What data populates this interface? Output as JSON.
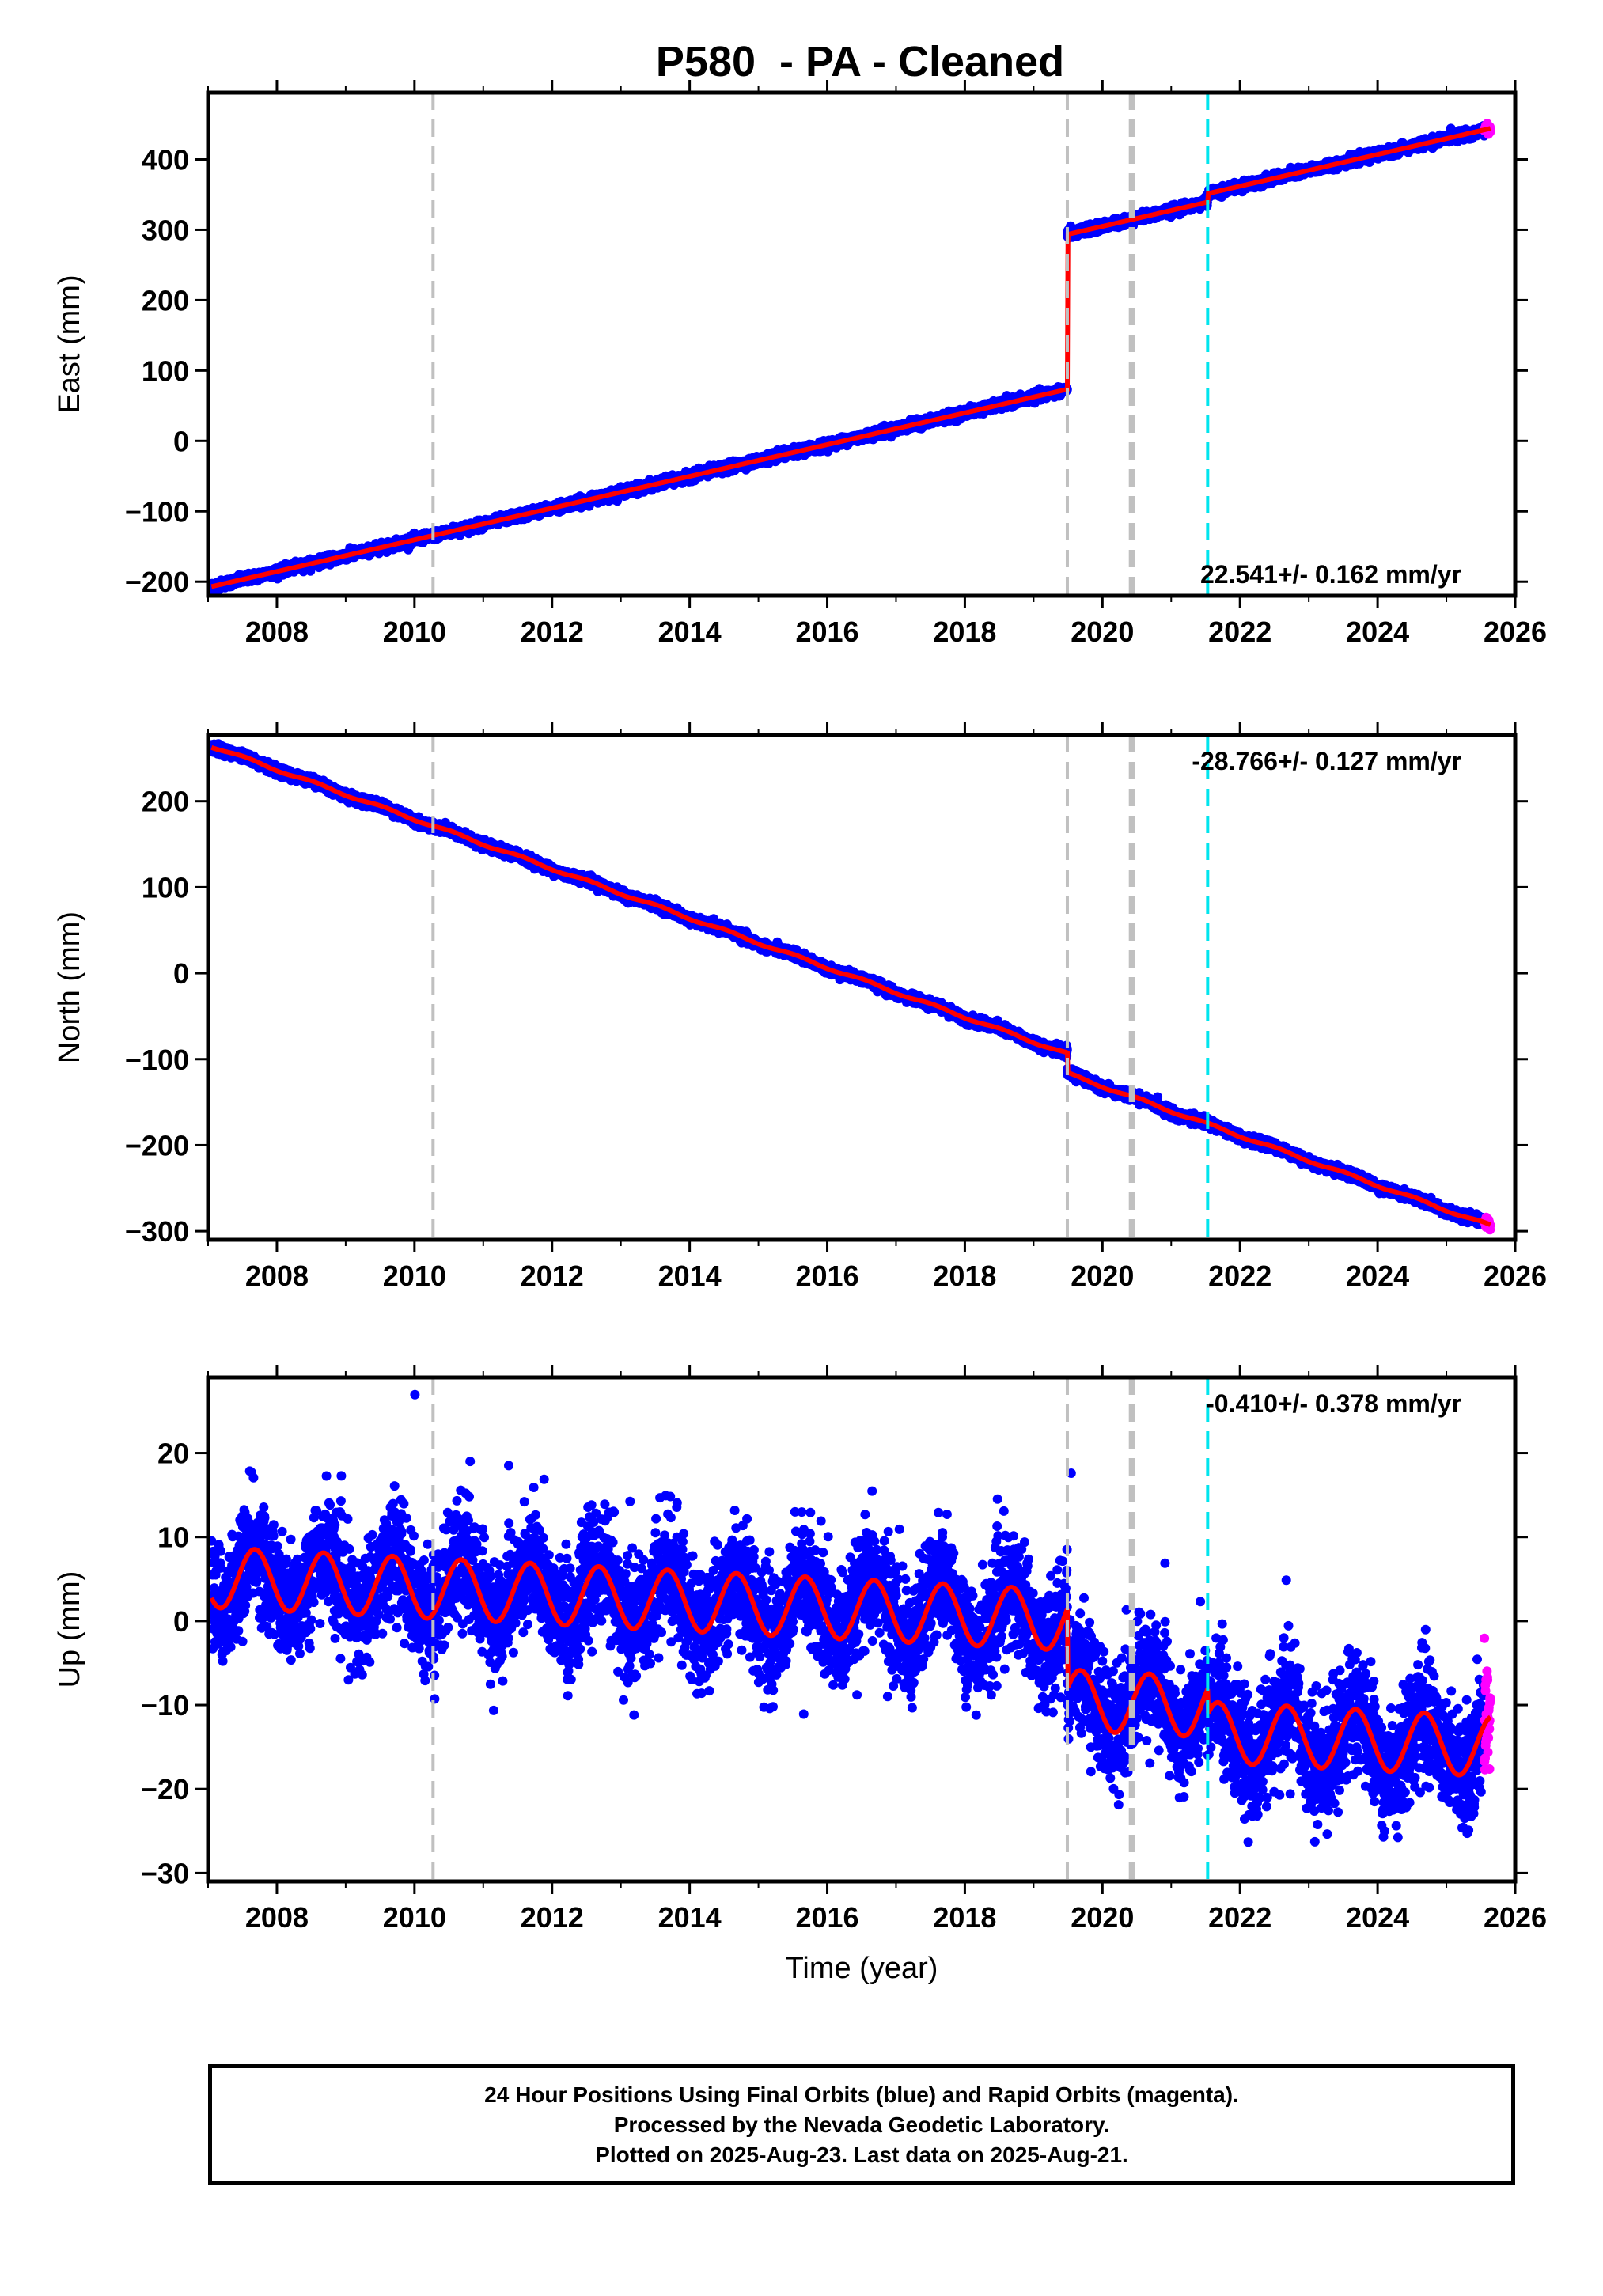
{
  "title": "P580  - PA - Cleaned",
  "footer": {
    "line1": "24 Hour Positions Using Final Orbits (blue) and Rapid Orbits (magenta).",
    "line2": "Processed by the Nevada Geodetic Laboratory.",
    "line3": "Plotted on 2025-Aug-23. Last data on 2025-Aug-21."
  },
  "colors": {
    "final_orbits": "#0000ff",
    "rapid_orbits": "#ff00ff",
    "model_fit": "#ff0000",
    "event_line_gray": "#c0c0c0",
    "event_line_cyan": "#00e5ee"
  },
  "chart_data": [
    {
      "type": "scatter",
      "component": "east",
      "ylabel": "East (mm)",
      "xlabel": "",
      "xlim": [
        2007.0,
        2026.0
      ],
      "ylim": [
        -220,
        495
      ],
      "xticks": [
        2008,
        2010,
        2012,
        2014,
        2016,
        2018,
        2020,
        2022,
        2024,
        2026
      ],
      "yticks": [
        -200,
        -100,
        0,
        100,
        200,
        300,
        400
      ],
      "rate_label": "22.541+/- 0.162 mm/yr",
      "event_lines": [
        {
          "x": 2010.27,
          "color": "gray",
          "style": "dashed"
        },
        {
          "x": 2019.49,
          "color": "gray",
          "style": "dashed"
        },
        {
          "x": 2020.43,
          "color": "gray",
          "style": "dashed-bold"
        },
        {
          "x": 2021.53,
          "color": "cyan",
          "style": "dashed"
        }
      ],
      "model": {
        "t_start": 2007.05,
        "t_end": 2025.64,
        "t_ref": 2007.05,
        "y0": -207,
        "rate": 22.541,
        "steps": [
          {
            "t": 2019.49,
            "size": 220
          },
          {
            "t": 2021.53,
            "size": 12
          }
        ],
        "annual_amp": 0.0,
        "annual_phase": 0.0
      },
      "noise_mm": 3,
      "rapid_points": {
        "t_start": 2025.55,
        "t_end": 2025.64
      }
    },
    {
      "type": "scatter",
      "component": "north",
      "ylabel": "North (mm)",
      "xlabel": "",
      "xlim": [
        2007.0,
        2026.0
      ],
      "ylim": [
        -310,
        277
      ],
      "xticks": [
        2008,
        2010,
        2012,
        2014,
        2016,
        2018,
        2020,
        2022,
        2024,
        2026
      ],
      "yticks": [
        -300,
        -200,
        -100,
        0,
        100,
        200
      ],
      "rate_label": "-28.766+/- 0.127 mm/yr",
      "event_lines": [
        {
          "x": 2010.27,
          "color": "gray",
          "style": "dashed"
        },
        {
          "x": 2019.49,
          "color": "gray",
          "style": "dashed"
        },
        {
          "x": 2020.43,
          "color": "gray",
          "style": "dashed-bold"
        },
        {
          "x": 2021.53,
          "color": "cyan",
          "style": "dashed"
        }
      ],
      "model": {
        "t_start": 2007.05,
        "t_end": 2025.64,
        "t_ref": 2007.05,
        "y0": 264,
        "rate": -28.766,
        "steps": [
          {
            "t": 2019.49,
            "size": -23
          }
        ],
        "annual_amp": 1.5,
        "annual_phase": 0.3
      },
      "noise_mm": 2.5,
      "rapid_points": {
        "t_start": 2025.55,
        "t_end": 2025.64
      }
    },
    {
      "type": "scatter",
      "component": "up",
      "ylabel": "Up (mm)",
      "xlabel": "Time (year)",
      "xlim": [
        2007.0,
        2026.0
      ],
      "ylim": [
        -31,
        29
      ],
      "xticks": [
        2008,
        2010,
        2012,
        2014,
        2016,
        2018,
        2020,
        2022,
        2024,
        2026
      ],
      "yticks": [
        -30,
        -20,
        -10,
        0,
        10,
        20
      ],
      "rate_label": "-0.410+/- 0.378 mm/yr",
      "event_lines": [
        {
          "x": 2010.27,
          "color": "gray",
          "style": "dashed"
        },
        {
          "x": 2019.49,
          "color": "gray",
          "style": "dashed"
        },
        {
          "x": 2020.43,
          "color": "gray",
          "style": "dashed-bold"
        },
        {
          "x": 2021.53,
          "color": "cyan",
          "style": "dashed"
        }
      ],
      "model": {
        "t_start": 2007.05,
        "t_end": 2025.64,
        "t_ref": 2007.05,
        "y0": 5.2,
        "rate": -0.41,
        "steps": [
          {
            "t": 2019.49,
            "size": -9.5
          },
          {
            "t": 2020.43,
            "size": 0
          },
          {
            "t": 2021.53,
            "size": -3
          }
        ],
        "annual_amp": 3.6,
        "annual_phase": 0.43
      },
      "noise_mm": 3.4,
      "rapid_points": {
        "t_start": 2025.55,
        "t_end": 2025.64
      }
    }
  ]
}
